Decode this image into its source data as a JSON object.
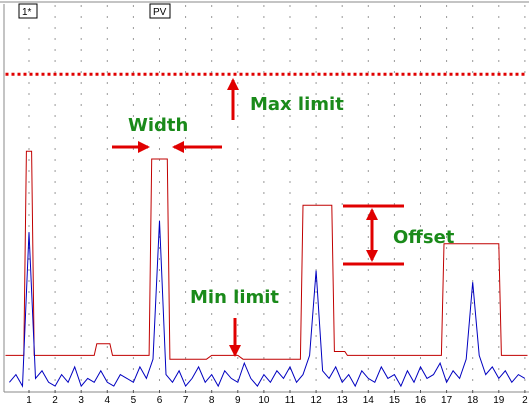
{
  "chart_data": {
    "type": "line",
    "tabs": [
      "1*",
      "PV"
    ],
    "annotations": {
      "max": "Max limit",
      "width": "Width",
      "offset": "Offset",
      "min": "Min limit"
    },
    "xlim": [
      0.1,
      20.1
    ],
    "ylim": [
      0,
      100
    ],
    "xticks": [
      1,
      2,
      3,
      4,
      5,
      6,
      7,
      8,
      9,
      10,
      11,
      12,
      13,
      14,
      15,
      16,
      17,
      18,
      19,
      {
        "value": 20,
        "label": "2"
      }
    ],
    "grid": true,
    "max_limit": 82,
    "max_limit_color": "#e00000",
    "series": [
      {
        "color": "#c00000",
        "x": [
          0.1,
          0.8,
          0.9,
          1.1,
          1.2,
          3.5,
          3.6,
          4.1,
          4.2,
          5.6,
          5.7,
          6.3,
          6.4,
          7.8,
          8.0,
          9.0,
          9.2,
          11.4,
          11.5,
          12.6,
          12.7,
          13.1,
          13.2,
          16.8,
          16.9,
          19.0,
          19.1,
          20.1
        ],
        "values": [
          9,
          9,
          62,
          62,
          9,
          9,
          12,
          12,
          9,
          9,
          60,
          60,
          8,
          8,
          9,
          9,
          8,
          8,
          48,
          48,
          10,
          10,
          9,
          9,
          38,
          38,
          9,
          9
        ]
      },
      {
        "color": "#0000c0",
        "x": [
          0.25,
          0.5,
          0.75,
          1,
          1.25,
          1.5,
          1.75,
          2,
          2.25,
          2.5,
          2.75,
          3,
          3.25,
          3.5,
          3.75,
          4,
          4.25,
          4.5,
          4.75,
          5,
          5.25,
          5.5,
          5.75,
          6,
          6.25,
          6.5,
          6.75,
          7,
          7.25,
          7.5,
          7.75,
          8,
          8.25,
          8.5,
          8.75,
          9,
          9.25,
          9.5,
          9.75,
          10,
          10.25,
          10.5,
          10.75,
          11,
          11.25,
          11.5,
          11.75,
          12,
          12.25,
          12.5,
          12.75,
          13,
          13.25,
          13.5,
          13.75,
          14,
          14.25,
          14.5,
          14.75,
          15,
          15.25,
          15.5,
          15.75,
          16,
          16.25,
          16.5,
          16.75,
          17,
          17.25,
          17.5,
          17.75,
          18,
          18.25,
          18.5,
          18.75,
          19,
          19.25,
          19.5,
          19.75,
          20
        ],
        "values": [
          2,
          4,
          1,
          41,
          3,
          5,
          2,
          1,
          4,
          2,
          6,
          1,
          3,
          2,
          5,
          2,
          1,
          4,
          3,
          2,
          6,
          3,
          8,
          44,
          4,
          2,
          5,
          1,
          3,
          6,
          2,
          4,
          1,
          5,
          3,
          2,
          7,
          3,
          1,
          4,
          2,
          5,
          3,
          6,
          2,
          4,
          9,
          31,
          5,
          3,
          6,
          2,
          4,
          1,
          5,
          3,
          2,
          6,
          3,
          4,
          1,
          5,
          2,
          6,
          3,
          4,
          7,
          2,
          5,
          3,
          8,
          28,
          9,
          4,
          6,
          3,
          5,
          2,
          4,
          3
        ]
      }
    ]
  }
}
